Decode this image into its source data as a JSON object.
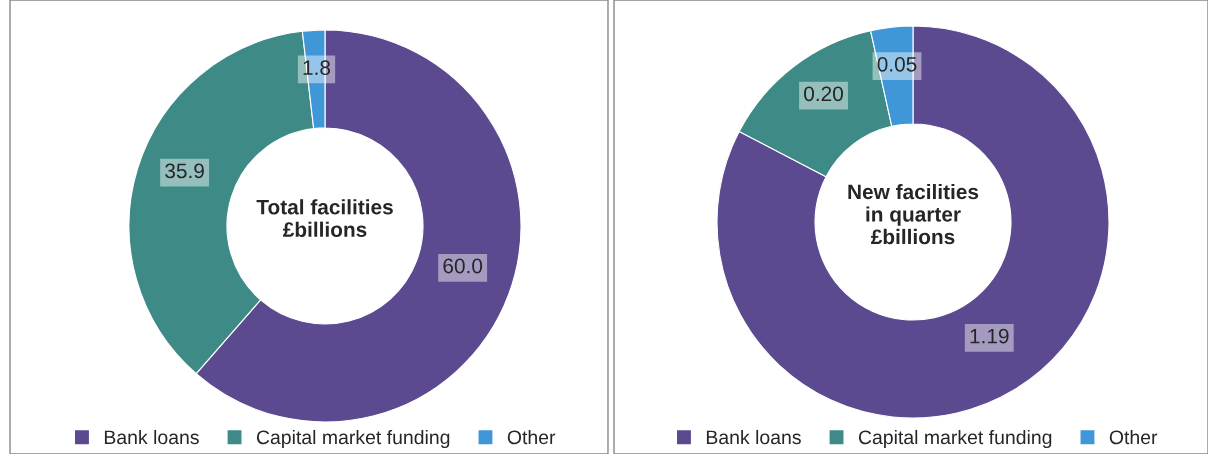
{
  "chart_data": [
    {
      "type": "donut",
      "title": "Total facilities\n£billions",
      "categories": [
        "Bank loans",
        "Capital market funding",
        "Other"
      ],
      "values": [
        60.0,
        35.9,
        1.8
      ],
      "value_labels": [
        "60.0",
        "35.9",
        "1.8"
      ],
      "colors": [
        "#5b4a8f",
        "#3d8a87",
        "#3f97d8"
      ],
      "legend": "bottom"
    },
    {
      "type": "donut",
      "title": "New facilities\nin quarter\n£billions",
      "categories": [
        "Bank loans",
        "Capital market funding",
        "Other"
      ],
      "values": [
        1.19,
        0.2,
        0.05
      ],
      "value_labels": [
        "1.19",
        "0.20",
        "0.05"
      ],
      "colors": [
        "#5b4a8f",
        "#3d8a87",
        "#3f97d8"
      ],
      "legend": "bottom"
    }
  ]
}
